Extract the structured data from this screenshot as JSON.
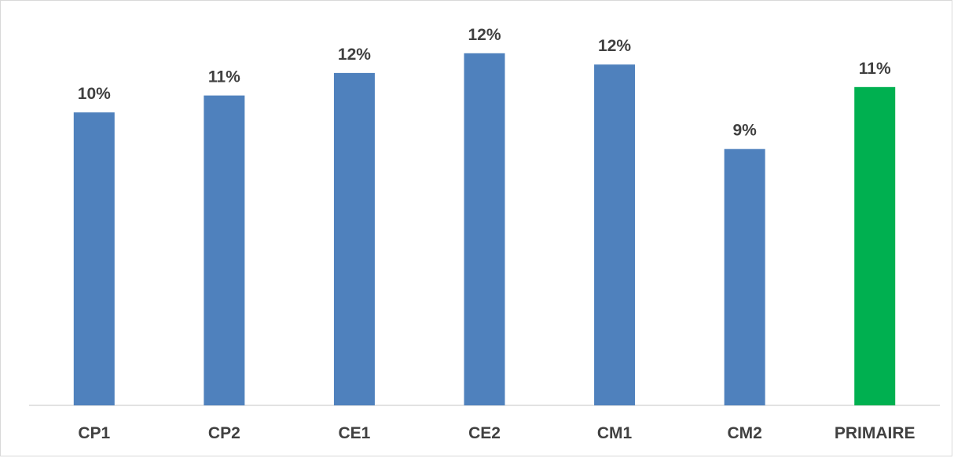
{
  "chart_data": {
    "type": "bar",
    "categories": [
      "CP1",
      "CP2",
      "CE1",
      "CE2",
      "CM1",
      "CM2",
      "PRIMAIRE"
    ],
    "values": [
      10.4,
      11.0,
      11.8,
      12.5,
      12.1,
      9.1,
      11.3
    ],
    "data_labels": [
      "10%",
      "11%",
      "12%",
      "12%",
      "12%",
      "9%",
      "11%"
    ],
    "ylim": [
      0,
      14
    ],
    "grid": false,
    "legend": "none",
    "colors": {
      "default_bar": "#4f81bd",
      "highlight_bar": "#00b050",
      "axis": "#d9d9d9",
      "label_text": "#404040"
    },
    "highlight_category": "PRIMAIRE"
  }
}
